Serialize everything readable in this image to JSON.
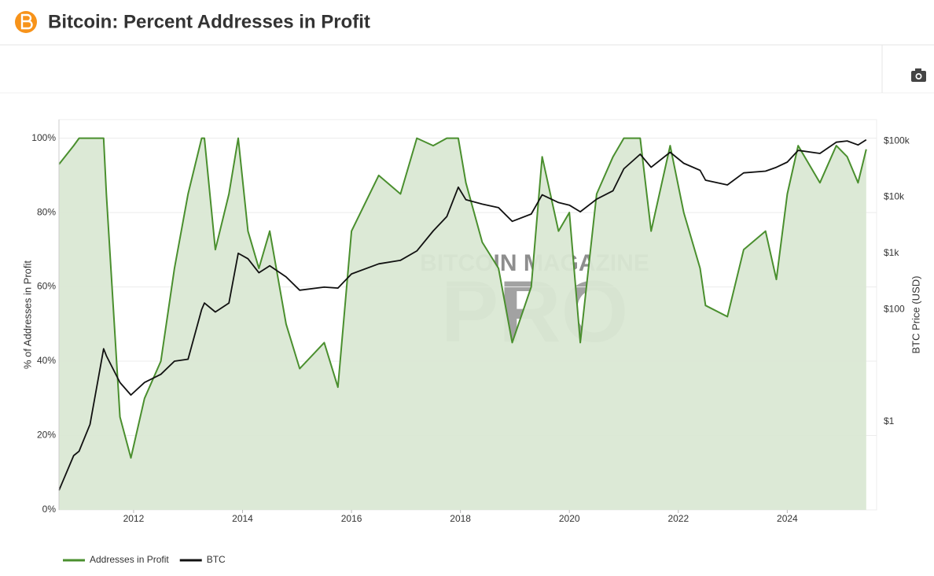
{
  "chart_data": {
    "type": "line",
    "title": "Bitcoin: Percent Addresses in Profit",
    "y_label": "% of Addresses in Profit",
    "y2_label": "BTC Price (USD)",
    "watermark": {
      "top": "BITCOIN MAGAZINE",
      "main": "PRO"
    },
    "x": [
      2010.63,
      2010.9,
      2011.0,
      2011.2,
      2011.45,
      2011.5,
      2011.75,
      2011.95,
      2012.2,
      2012.5,
      2012.75,
      2013.0,
      2013.25,
      2013.3,
      2013.5,
      2013.75,
      2013.92,
      2014.1,
      2014.3,
      2014.5,
      2014.8,
      2015.05,
      2015.5,
      2015.75,
      2016.0,
      2016.5,
      2016.9,
      2017.2,
      2017.5,
      2017.75,
      2017.96,
      2018.1,
      2018.4,
      2018.7,
      2018.95,
      2019.3,
      2019.5,
      2019.8,
      2020.0,
      2020.2,
      2020.5,
      2020.8,
      2021.0,
      2021.3,
      2021.5,
      2021.85,
      2022.1,
      2022.4,
      2022.5,
      2022.9,
      2023.2,
      2023.6,
      2023.8,
      2024.0,
      2024.2,
      2024.6,
      2024.9,
      2025.1,
      2025.3,
      2025.45
    ],
    "xlim": [
      2010.63,
      2025.64
    ],
    "xticks": [
      2012,
      2014,
      2016,
      2018,
      2020,
      2022,
      2024
    ],
    "ylim": [
      0,
      105
    ],
    "yticks": [
      {
        "value": 0,
        "label": "0%"
      },
      {
        "value": 20,
        "label": "20%"
      },
      {
        "value": 40,
        "label": "40%"
      },
      {
        "value": 60,
        "label": "60%"
      },
      {
        "value": 80,
        "label": "80%"
      },
      {
        "value": 100,
        "label": "100%"
      }
    ],
    "y2lim": [
      0.027,
      240000
    ],
    "y2_log": true,
    "y2ticks": [
      {
        "value": 1,
        "label": "$1"
      },
      {
        "value": 100,
        "label": "$100"
      },
      {
        "value": 1000,
        "label": "$1k"
      },
      {
        "value": 10000,
        "label": "$10k"
      },
      {
        "value": 100000,
        "label": "$100k"
      }
    ],
    "grid": true,
    "series": [
      {
        "name": "Addresses in Profit",
        "color": "#4a8f2e",
        "fill_color": "#dae8d4",
        "values": [
          93,
          98,
          100,
          100,
          100,
          85,
          25,
          14,
          30,
          40,
          65,
          85,
          100,
          100,
          70,
          85,
          100,
          75,
          65,
          75,
          50,
          38,
          45,
          33,
          75,
          90,
          85,
          100,
          98,
          100,
          100,
          88,
          72,
          65,
          45,
          60,
          95,
          75,
          80,
          45,
          85,
          95,
          100,
          100,
          75,
          98,
          80,
          65,
          55,
          52,
          70,
          75,
          62,
          85,
          98,
          88,
          98,
          95,
          88,
          97
        ]
      },
      {
        "name": "BTC",
        "color": "#111111",
        "axis": "y2",
        "values": [
          0.06,
          0.25,
          0.3,
          0.9,
          20,
          15,
          5,
          3,
          5,
          7,
          12,
          13,
          100,
          130,
          90,
          130,
          1000,
          800,
          450,
          600,
          380,
          220,
          250,
          240,
          430,
          650,
          750,
          1100,
          2500,
          4500,
          15000,
          9000,
          7500,
          6500,
          3700,
          5000,
          11000,
          8000,
          7200,
          5500,
          9200,
          13000,
          32000,
          58000,
          34000,
          63000,
          40000,
          30000,
          20000,
          16500,
          27000,
          29000,
          34000,
          42000,
          68000,
          60000,
          95000,
          100000,
          85000,
          105000
        ]
      }
    ]
  }
}
